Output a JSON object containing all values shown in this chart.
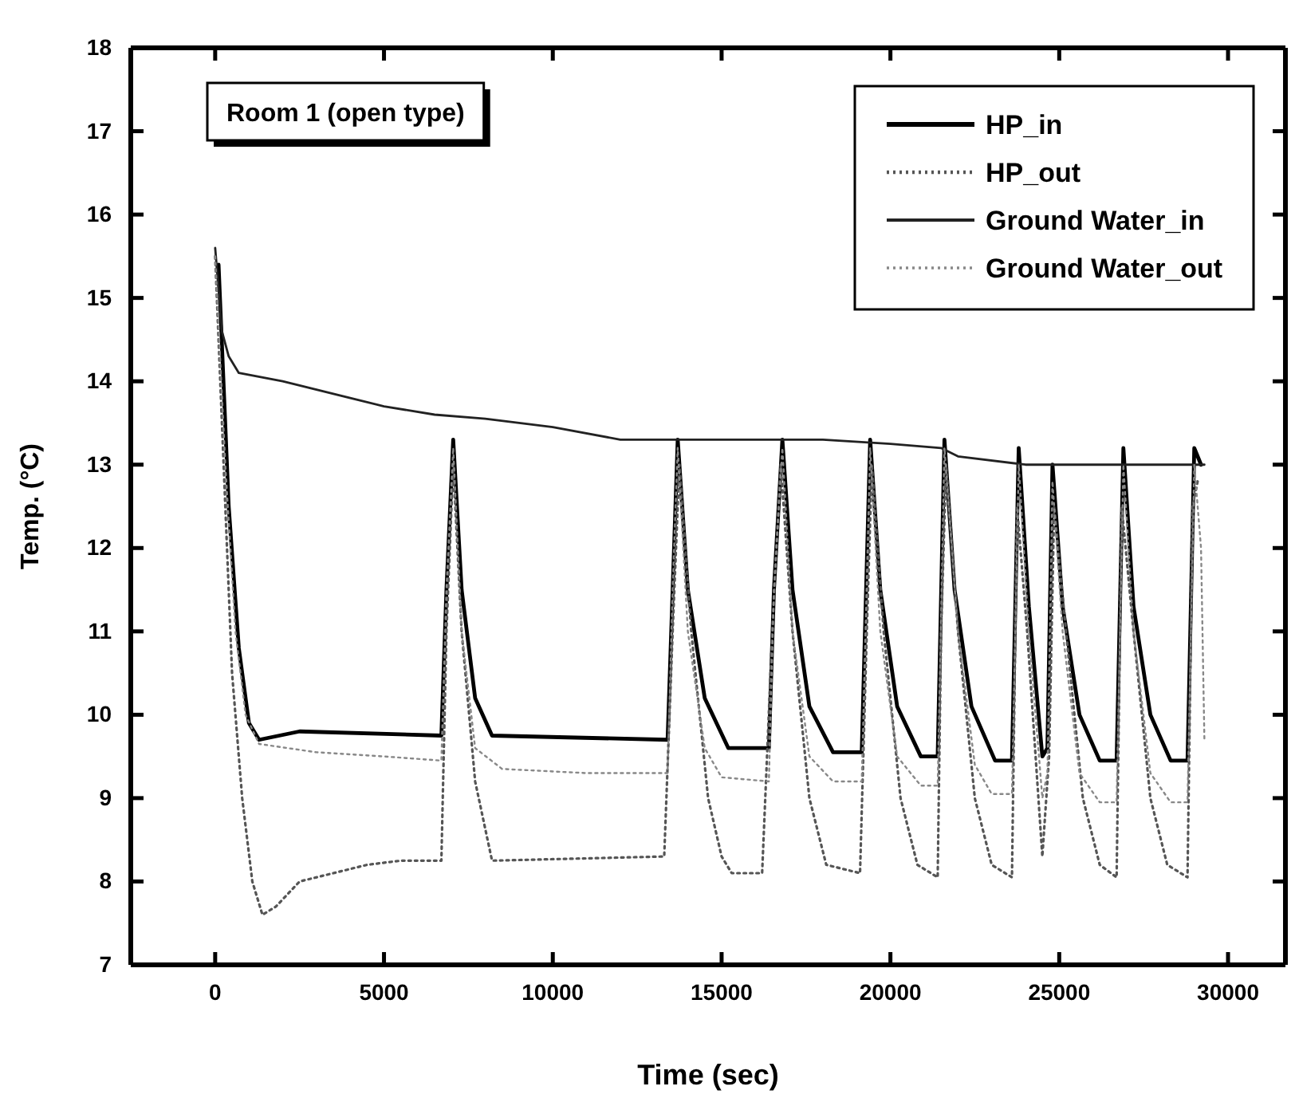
{
  "chart_data": {
    "type": "line",
    "xlabel": "Time (sec)",
    "ylabel": "Temp. (°C)",
    "annotations": [
      "Room 1 (open type)"
    ],
    "xlim": [
      -2500,
      31700
    ],
    "ylim": [
      7,
      18
    ],
    "xticks": [
      0,
      5000,
      10000,
      15000,
      20000,
      25000,
      30000
    ],
    "yticks": [
      7,
      8,
      9,
      10,
      11,
      12,
      13,
      14,
      15,
      16,
      17,
      18
    ],
    "legend": "top right",
    "grid": false,
    "series": [
      {
        "name": "HP_in",
        "color": "#000000",
        "line_style": "solid",
        "x": [
          100,
          400,
          700,
          1000,
          1300,
          2500,
          6700,
          6850,
          7050,
          7300,
          7700,
          8200,
          13400,
          13550,
          13700,
          14000,
          14500,
          15200,
          16400,
          16550,
          16800,
          17100,
          17600,
          18300,
          19150,
          19400,
          19700,
          20200,
          20900,
          21400,
          21600,
          21900,
          22400,
          23100,
          23600,
          23800,
          24100,
          24500,
          24650,
          24800,
          25100,
          25600,
          26200,
          26700,
          26900,
          27200,
          27700,
          28300,
          28800,
          29000,
          29200
        ],
        "values": [
          15.4,
          12.5,
          10.8,
          9.9,
          9.7,
          9.8,
          9.75,
          11.5,
          13.3,
          11.5,
          10.2,
          9.75,
          9.7,
          11.5,
          13.3,
          11.5,
          10.2,
          9.6,
          9.6,
          11.5,
          13.3,
          11.5,
          10.1,
          9.55,
          9.55,
          13.3,
          11.5,
          10.1,
          9.5,
          9.5,
          13.3,
          11.5,
          10.1,
          9.45,
          9.45,
          13.2,
          11.3,
          9.5,
          9.6,
          13.0,
          11.3,
          10.0,
          9.45,
          9.45,
          13.2,
          11.3,
          10.0,
          9.45,
          9.45,
          13.2,
          13.0
        ]
      },
      {
        "name": "HP_out",
        "color": "#555555",
        "line_style": "dotted",
        "x": [
          0,
          200,
          500,
          800,
          1100,
          1400,
          1800,
          2500,
          3500,
          4500,
          5500,
          6700,
          6850,
          7050,
          7300,
          7700,
          8200,
          13300,
          13550,
          13750,
          14100,
          14600,
          15000,
          15300,
          16200,
          16500,
          16750,
          17100,
          17600,
          18100,
          19100,
          19300,
          19450,
          19800,
          20300,
          20800,
          21400,
          21500,
          21650,
          22000,
          22500,
          23000,
          23600,
          23750,
          24050,
          24500,
          24700,
          24850,
          25200,
          25700,
          26200,
          26700,
          26850,
          27200,
          27700,
          28200,
          28800,
          28950,
          29100
        ],
        "values": [
          15.5,
          13.5,
          10.5,
          9.0,
          8.0,
          7.6,
          7.7,
          8.0,
          8.1,
          8.2,
          8.25,
          8.25,
          11.0,
          13.0,
          11.0,
          9.2,
          8.25,
          8.3,
          11.0,
          13.0,
          11.0,
          9.0,
          8.3,
          8.1,
          8.1,
          11.0,
          13.0,
          11.0,
          9.0,
          8.2,
          8.1,
          11.0,
          13.0,
          11.0,
          9.0,
          8.2,
          8.05,
          11.0,
          13.0,
          11.0,
          9.0,
          8.2,
          8.05,
          12.5,
          11.0,
          8.3,
          9.5,
          12.5,
          11.0,
          9.0,
          8.2,
          8.05,
          12.5,
          11.0,
          9.0,
          8.2,
          8.05,
          12.5,
          12.8
        ]
      },
      {
        "name": "Ground Water_in",
        "color": "#222222",
        "line_style": "solid",
        "x": [
          0,
          200,
          400,
          700,
          2000,
          3000,
          4000,
          5000,
          6500,
          8000,
          10000,
          12000,
          14000,
          16000,
          18000,
          20000,
          21500,
          22000,
          24000,
          26000,
          29300
        ],
        "values": [
          15.6,
          14.6,
          14.3,
          14.1,
          14.0,
          13.9,
          13.8,
          13.7,
          13.6,
          13.55,
          13.45,
          13.3,
          13.3,
          13.3,
          13.3,
          13.25,
          13.2,
          13.1,
          13.0,
          13.0,
          13.0
        ]
      },
      {
        "name": "Ground Water_out",
        "color": "#888888",
        "line_style": "dotted",
        "x": [
          0,
          300,
          600,
          900,
          1300,
          3000,
          5000,
          6700,
          6850,
          7050,
          7300,
          7700,
          8500,
          11000,
          13400,
          13550,
          13700,
          14000,
          14500,
          15000,
          16400,
          16550,
          16800,
          17100,
          17600,
          18300,
          19150,
          19400,
          19700,
          20200,
          20900,
          21400,
          21600,
          22000,
          22500,
          23000,
          23600,
          23800,
          24100,
          24500,
          24650,
          24800,
          25100,
          25600,
          26200,
          26700,
          26900,
          27200,
          27700,
          28300,
          28800,
          29000,
          29200,
          29300
        ],
        "values": [
          15.5,
          13.0,
          11.0,
          10.0,
          9.65,
          9.55,
          9.5,
          9.45,
          11.5,
          13.2,
          11.0,
          9.6,
          9.35,
          9.3,
          9.3,
          11.5,
          13.2,
          11.0,
          9.6,
          9.25,
          9.2,
          11.5,
          13.2,
          11.0,
          9.5,
          9.2,
          9.2,
          13.2,
          11.0,
          9.5,
          9.15,
          9.15,
          13.2,
          11.0,
          9.4,
          9.05,
          9.05,
          13.0,
          11.0,
          9.0,
          9.3,
          12.8,
          11.0,
          9.3,
          8.95,
          8.95,
          13.0,
          11.0,
          9.3,
          8.95,
          8.95,
          13.0,
          12.0,
          9.7
        ]
      }
    ]
  }
}
